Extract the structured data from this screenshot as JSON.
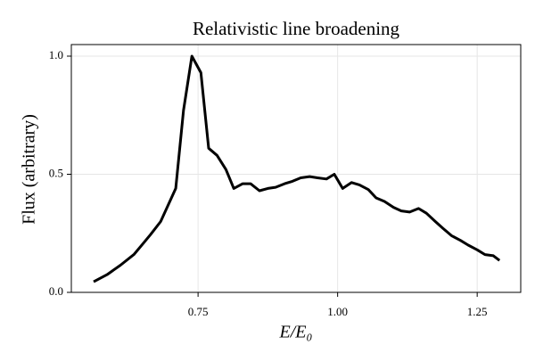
{
  "chart_data": {
    "type": "line",
    "title": "Relativistic line broadening",
    "xlabel": "E/E₀",
    "ylabel": "Flux (arbitrary)",
    "x": [
      0.563,
      0.587,
      0.611,
      0.635,
      0.651,
      0.665,
      0.683,
      0.71,
      0.724,
      0.739,
      0.755,
      0.769,
      0.784,
      0.8,
      0.814,
      0.83,
      0.844,
      0.86,
      0.875,
      0.889,
      0.905,
      0.919,
      0.934,
      0.95,
      0.964,
      0.98,
      0.994,
      1.009,
      1.025,
      1.039,
      1.055,
      1.069,
      1.084,
      1.1,
      1.114,
      1.129,
      1.145,
      1.159,
      1.175,
      1.189,
      1.204,
      1.22,
      1.234,
      1.25,
      1.264,
      1.279,
      1.29
    ],
    "series": [
      {
        "name": "Flux",
        "color": "#000000",
        "values": [
          0.045,
          0.075,
          0.115,
          0.16,
          0.205,
          0.245,
          0.3,
          0.44,
          0.77,
          1.0,
          0.93,
          0.61,
          0.58,
          0.52,
          0.44,
          0.46,
          0.46,
          0.43,
          0.44,
          0.445,
          0.46,
          0.47,
          0.485,
          0.49,
          0.485,
          0.48,
          0.5,
          0.44,
          0.465,
          0.455,
          0.435,
          0.4,
          0.385,
          0.36,
          0.345,
          0.34,
          0.355,
          0.335,
          0.3,
          0.27,
          0.24,
          0.22,
          0.2,
          0.18,
          0.16,
          0.155,
          0.135
        ]
      }
    ],
    "xlim": [
      0.523,
      1.328
    ],
    "ylim": [
      0,
      1.049
    ],
    "xticks": [
      0.75,
      {
        "value": 1.0,
        "label": "1.00"
      },
      1.25
    ],
    "yticks": [
      {
        "value": 0,
        "label": "0.0"
      },
      0.5,
      {
        "value": 1.0,
        "label": "1.0"
      }
    ],
    "grid": true
  }
}
